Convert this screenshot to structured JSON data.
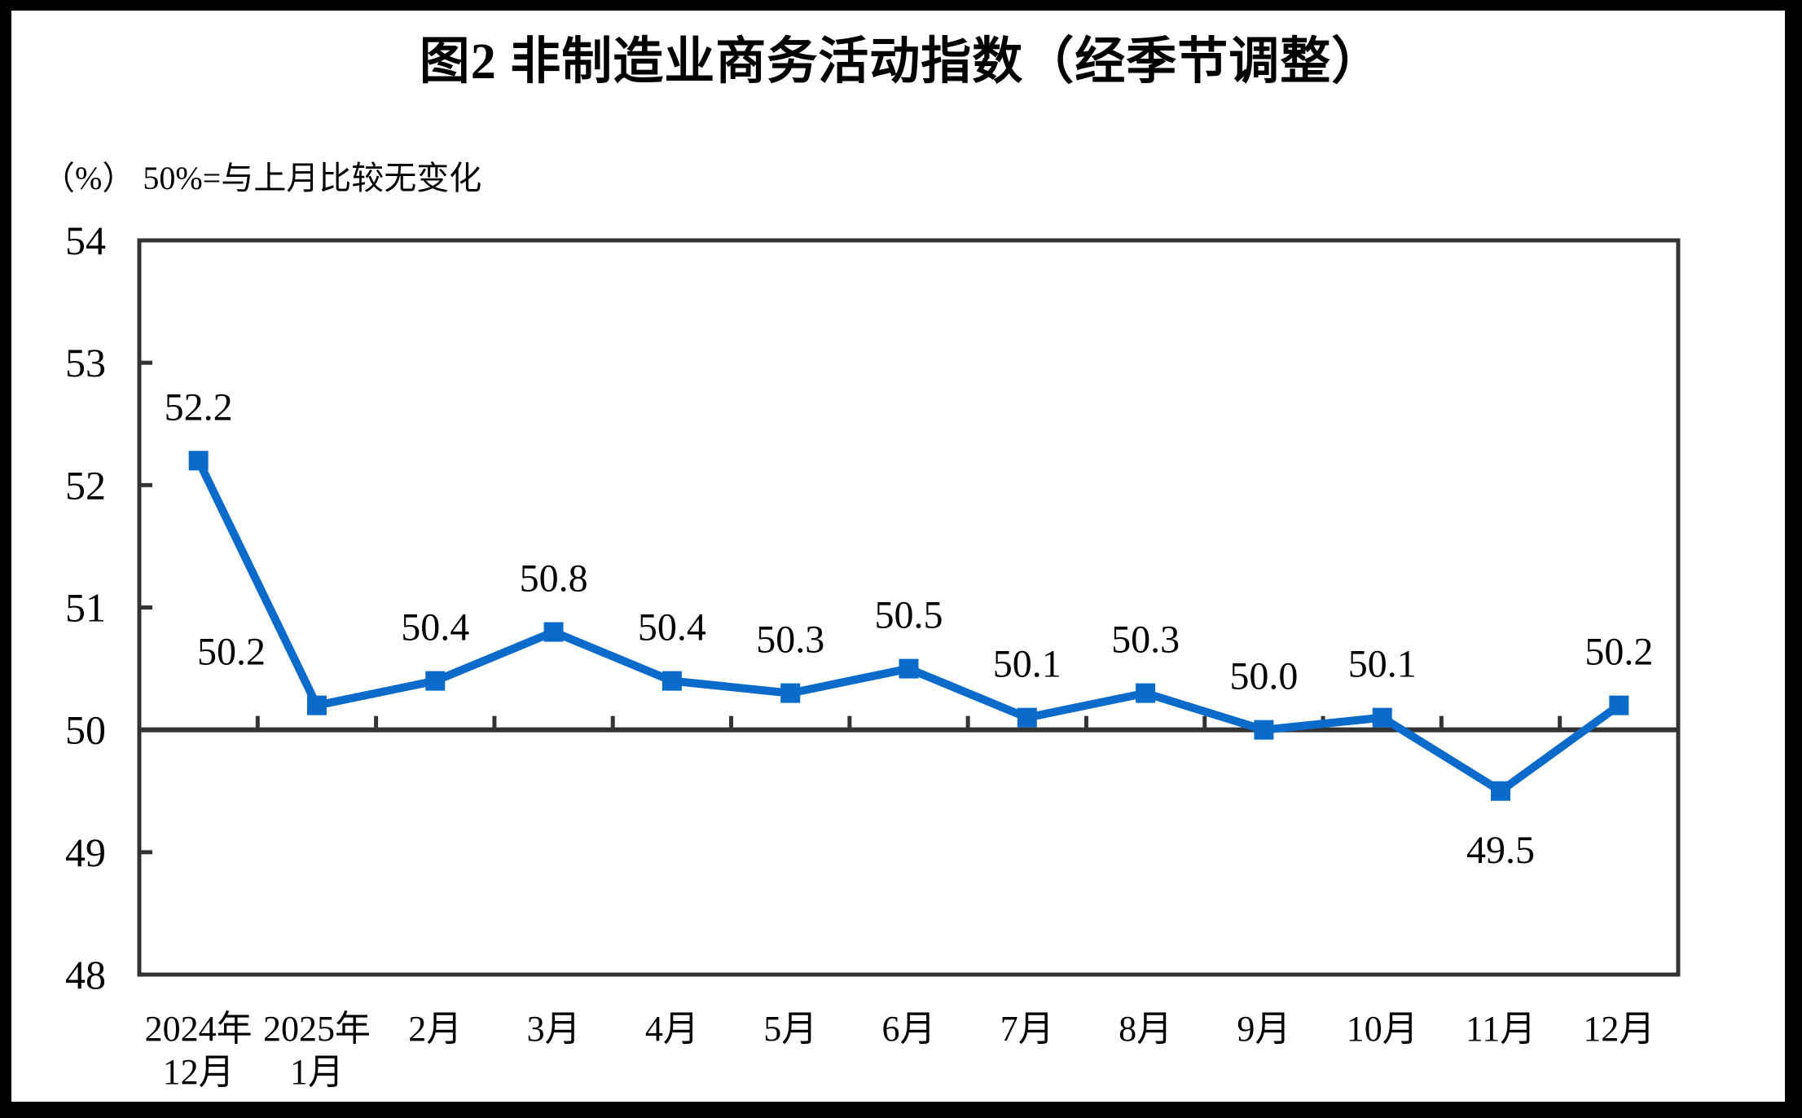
{
  "colors": {
    "frame": "#000000",
    "background": "#ffffff",
    "line": "#0b6bcb",
    "axis": "#333333",
    "text": "#000000"
  },
  "chart_data": {
    "type": "line",
    "title": "图2 非制造业商务活动指数（经季节调整）",
    "unit_note": "（%） 50%=与上月比较无变化",
    "categories": [
      [
        "2024年",
        "12月"
      ],
      [
        "2025年",
        "1月"
      ],
      [
        "2月"
      ],
      [
        "3月"
      ],
      [
        "4月"
      ],
      [
        "5月"
      ],
      [
        "6月"
      ],
      [
        "7月"
      ],
      [
        "8月"
      ],
      [
        "9月"
      ],
      [
        "10月"
      ],
      [
        "11月"
      ],
      [
        "12月"
      ]
    ],
    "values": [
      52.2,
      50.2,
      50.4,
      50.8,
      50.4,
      50.3,
      50.5,
      50.1,
      50.3,
      50.0,
      50.1,
      49.5,
      50.2
    ],
    "data_labels": [
      "52.2",
      "50.2",
      "50.4",
      "50.8",
      "50.4",
      "50.3",
      "50.5",
      "50.1",
      "50.3",
      "50.0",
      "50.1",
      "49.5",
      "50.2"
    ],
    "label_positions": [
      "above",
      "above-left",
      "above",
      "above",
      "above",
      "above",
      "above",
      "above",
      "above",
      "above",
      "above",
      "below",
      "above"
    ],
    "ylim": [
      48,
      54
    ],
    "yticks": [
      54,
      53,
      52,
      51,
      50,
      49,
      48
    ],
    "baseline_value": 50,
    "marker": "square",
    "grid": false,
    "legend": null
  }
}
